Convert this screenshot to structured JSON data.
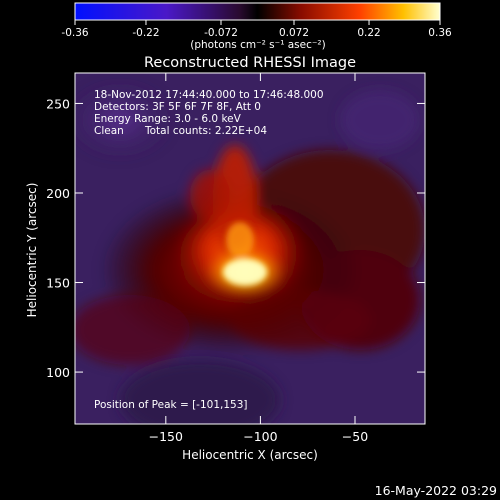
{
  "colorbar": {
    "ticks": [
      "-0.36",
      "-0.22",
      "-0.072",
      "0.072",
      "0.22",
      "0.36"
    ],
    "values": [
      -0.36,
      -0.22,
      -0.072,
      0.072,
      0.22,
      0.36
    ],
    "unit_label": "(photons cm⁻² s⁻¹ asec⁻²)"
  },
  "chart_data": {
    "type": "heatmap",
    "title": "Reconstructed RHESSI Image",
    "xlabel": "Heliocentric X (arcsec)",
    "ylabel": "Heliocentric Y (arcsec)",
    "xlim": [
      -198,
      -13
    ],
    "ylim": [
      71,
      267
    ],
    "xticks": [
      -150,
      -100,
      -50
    ],
    "yticks": [
      100,
      150,
      200,
      250
    ],
    "xtick_labels": [
      "−150",
      "−100",
      "−50"
    ],
    "ytick_labels": [
      "100",
      "150",
      "200",
      "250"
    ],
    "zlim": [
      -0.36,
      0.36
    ],
    "colormap": "IDL color table 3 (blue-purple-red-yellow)",
    "peak": [
      -101,
      153
    ],
    "annotations": {
      "time_range": "18-Nov-2012 17:44:40.000 to 17:46:48.000",
      "detectors": "Detectors: 3F 5F 6F 7F 8F, Att 0",
      "energy": "Energy Range: 3.0 - 6.0 keV",
      "method": "Clean",
      "counts": "Total counts: 2.22E+04",
      "peak_text": "Position of Peak = [-101,153]"
    }
  },
  "footer": {
    "timestamp": "16-May-2022 03:29"
  }
}
